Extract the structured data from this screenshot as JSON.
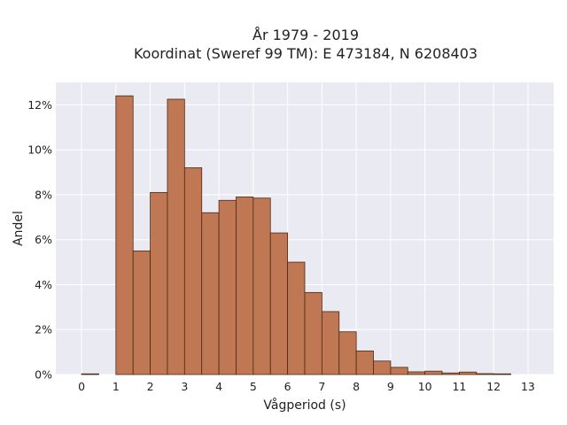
{
  "chart_data": {
    "type": "bar",
    "title_lines": [
      "År 1979 - 2019",
      "Koordinat (Sweref 99 TM): E 473184, N 6208403"
    ],
    "xlabel": "Vågperiod (s)",
    "ylabel": "Andel",
    "x_ticks": [
      "0",
      "1",
      "2",
      "3",
      "4",
      "5",
      "6",
      "7",
      "8",
      "9",
      "10",
      "11",
      "12",
      "13"
    ],
    "y_ticks": [
      "0%",
      "2%",
      "4%",
      "6%",
      "8%",
      "10%",
      "12%"
    ],
    "xlim": [
      -0.75,
      13.75
    ],
    "ylim": [
      0,
      13
    ],
    "bin_width": 0.5,
    "bins": [
      {
        "x0": 0.0,
        "value": 0.03
      },
      {
        "x0": 1.0,
        "value": 12.4
      },
      {
        "x0": 1.5,
        "value": 5.5
      },
      {
        "x0": 2.0,
        "value": 8.1
      },
      {
        "x0": 2.5,
        "value": 12.25
      },
      {
        "x0": 3.0,
        "value": 9.2
      },
      {
        "x0": 3.5,
        "value": 7.2
      },
      {
        "x0": 4.0,
        "value": 7.75
      },
      {
        "x0": 4.5,
        "value": 7.9
      },
      {
        "x0": 5.0,
        "value": 7.85
      },
      {
        "x0": 5.5,
        "value": 6.3
      },
      {
        "x0": 6.0,
        "value": 5.0
      },
      {
        "x0": 6.5,
        "value": 3.65
      },
      {
        "x0": 7.0,
        "value": 2.8
      },
      {
        "x0": 7.5,
        "value": 1.9
      },
      {
        "x0": 8.0,
        "value": 1.05
      },
      {
        "x0": 8.5,
        "value": 0.6
      },
      {
        "x0": 9.0,
        "value": 0.32
      },
      {
        "x0": 9.5,
        "value": 0.12
      },
      {
        "x0": 10.0,
        "value": 0.15
      },
      {
        "x0": 10.5,
        "value": 0.07
      },
      {
        "x0": 11.0,
        "value": 0.11
      },
      {
        "x0": 11.5,
        "value": 0.04
      },
      {
        "x0": 12.0,
        "value": 0.03
      }
    ],
    "bar_color": "#bf7853",
    "bar_edge_color": "#4a2a18",
    "background_color": "#eaeaf2",
    "grid": true,
    "grid_color": "#ffffff"
  }
}
